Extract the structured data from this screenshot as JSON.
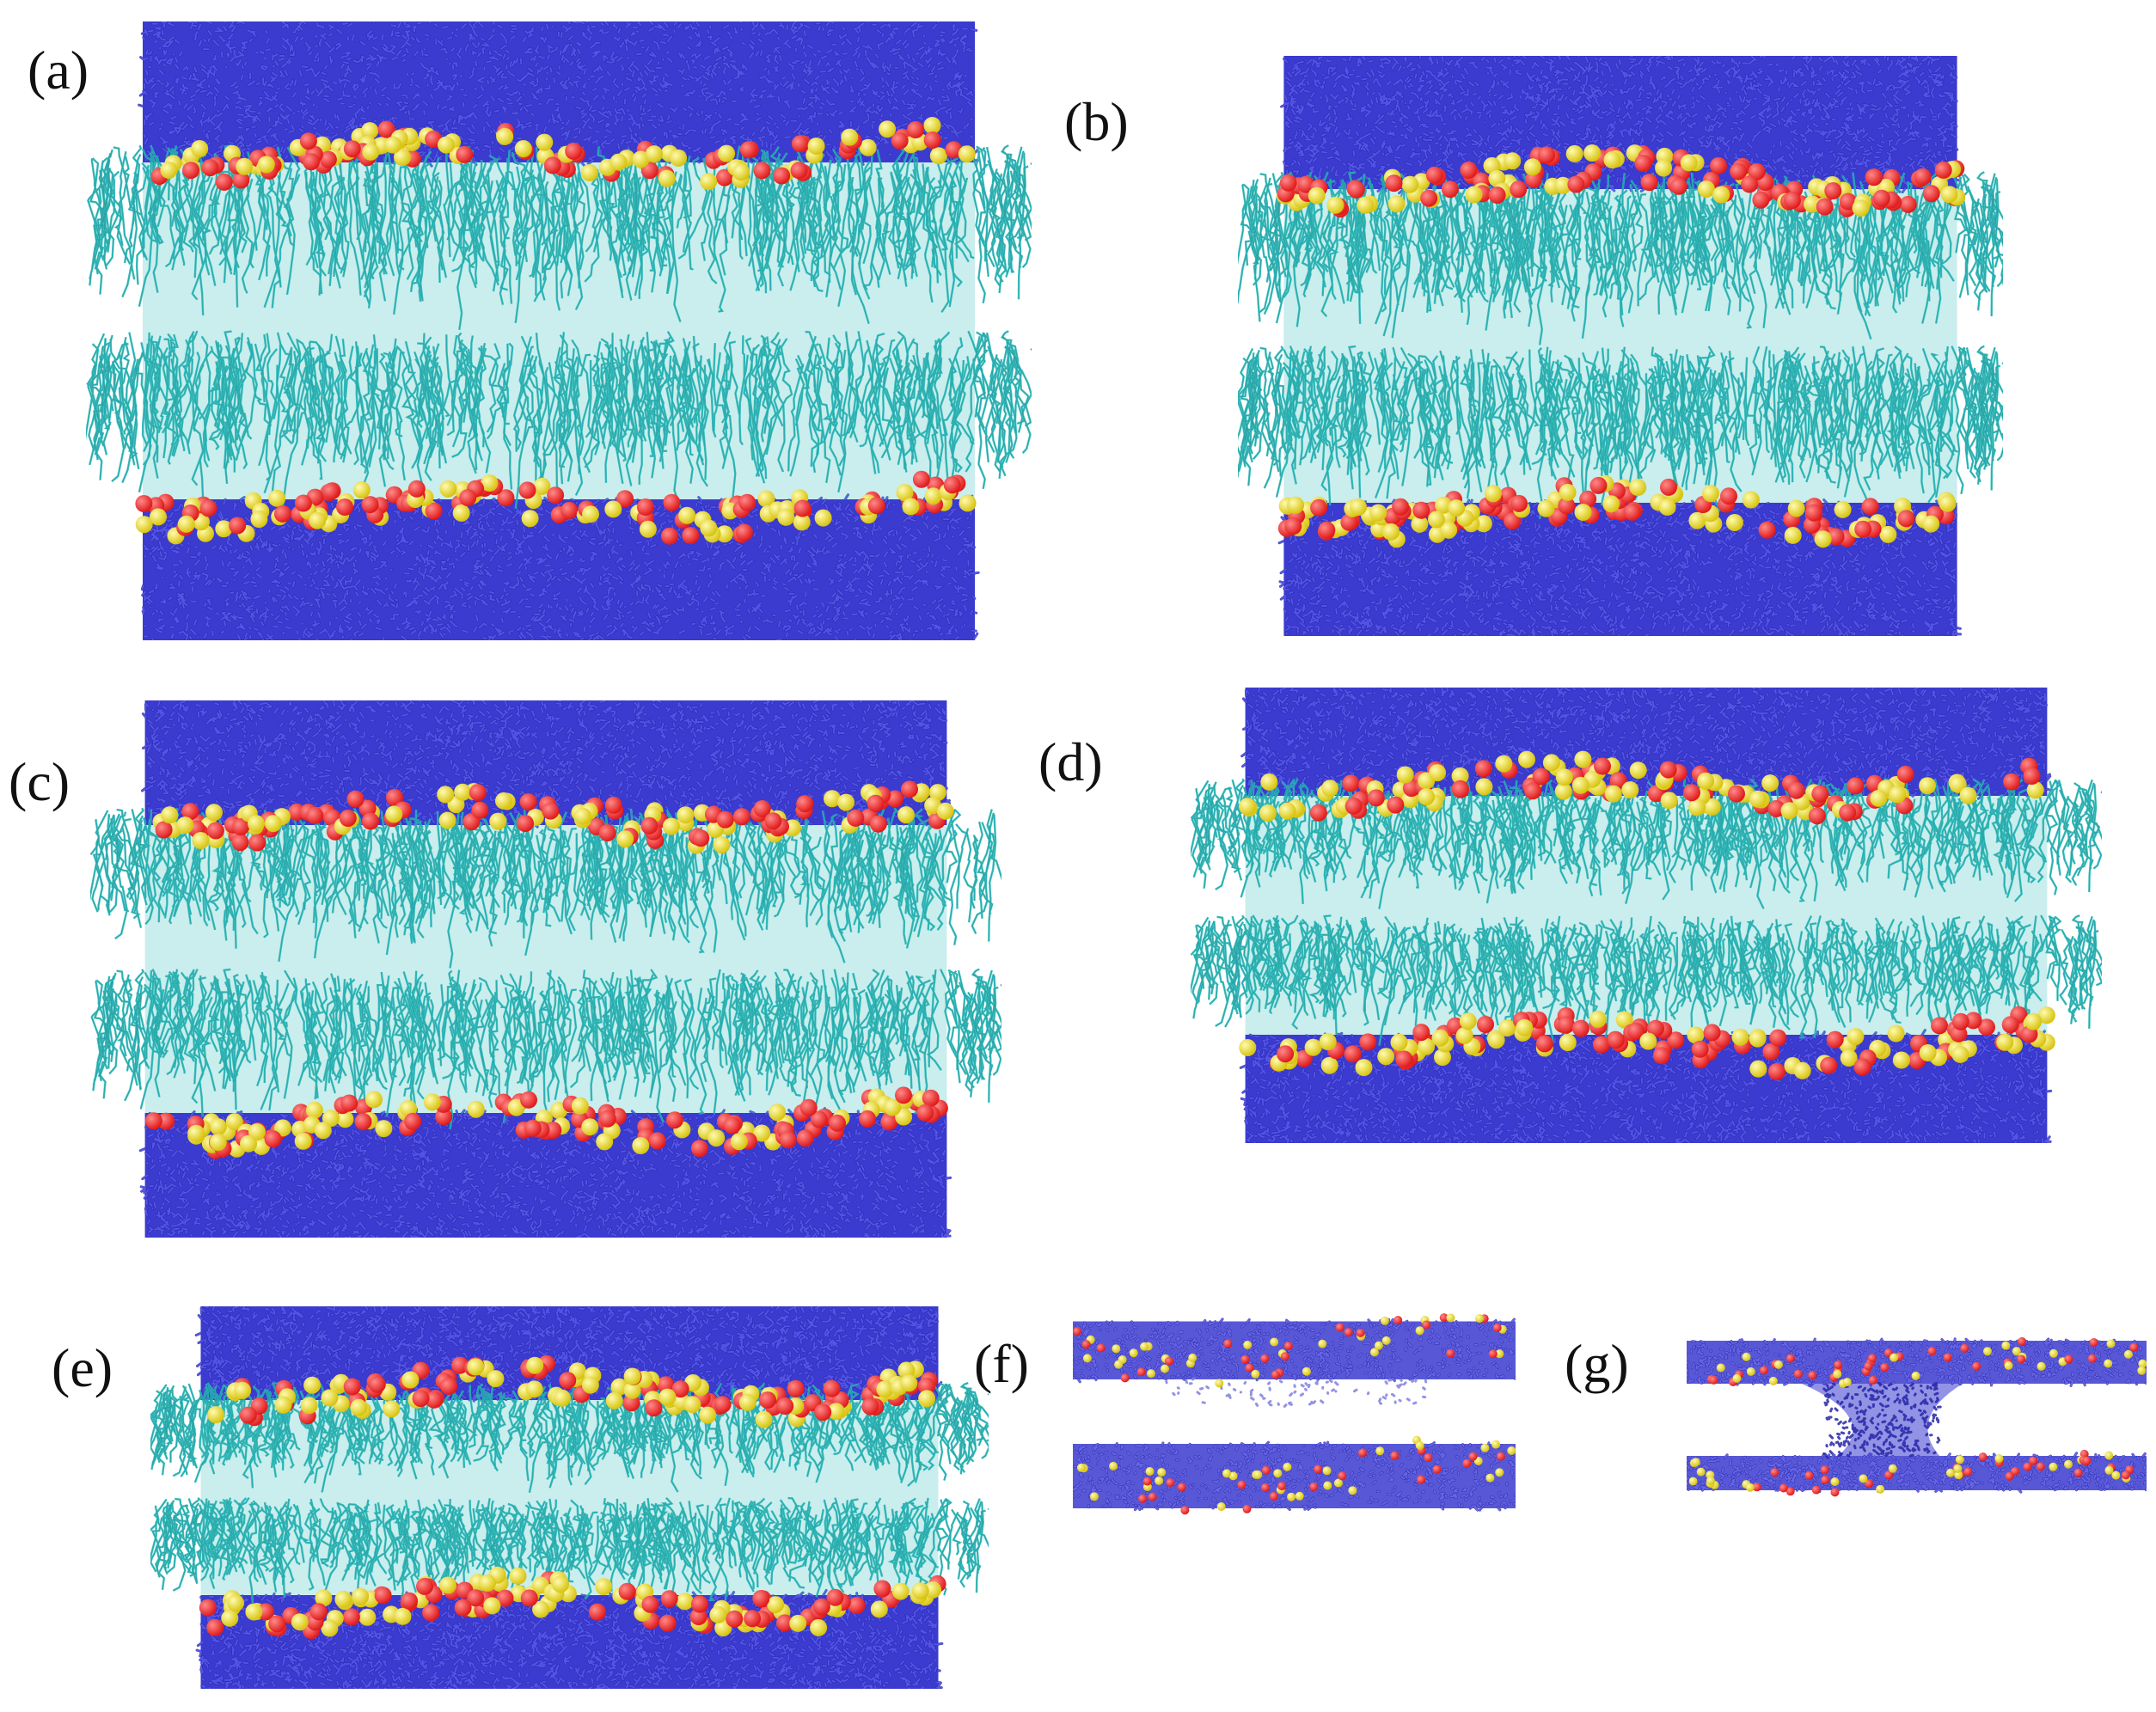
{
  "figure": {
    "panels": [
      {
        "id": "a",
        "label": "(a)",
        "kind": "full"
      },
      {
        "id": "b",
        "label": "(b)",
        "kind": "full"
      },
      {
        "id": "c",
        "label": "(c)",
        "kind": "full"
      },
      {
        "id": "d",
        "label": "(d)",
        "kind": "full"
      },
      {
        "id": "e",
        "label": "(e)",
        "kind": "full"
      },
      {
        "id": "f",
        "label": "(f)",
        "kind": "separated"
      },
      {
        "id": "g",
        "label": "(g)",
        "kind": "bridged"
      }
    ],
    "colors": {
      "water": "#3b3bd0",
      "water_dark": "#2626a8",
      "lipid_tails": "#2ab9b9",
      "head_red": "#e01b1b",
      "head_yellow": "#f0e020"
    }
  }
}
